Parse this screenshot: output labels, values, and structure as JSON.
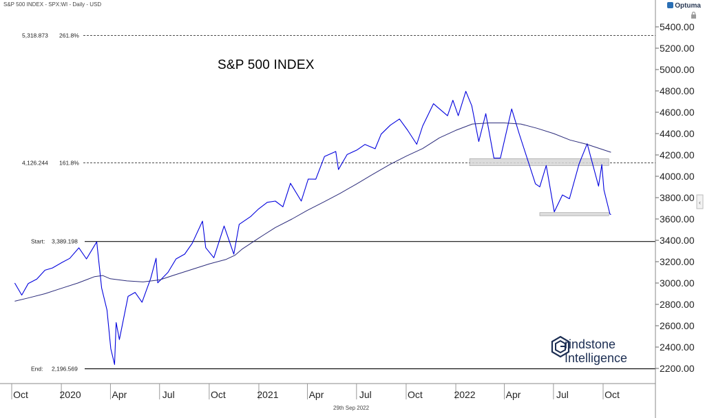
{
  "header": {
    "info": "S&P 500 INDEX - SPX:WI - Daily - USD",
    "brand": "Optuma"
  },
  "footer": {
    "date": "29th Sep 2022"
  },
  "watermark": {
    "line1": "rindstone",
    "line2": "Intelligence"
  },
  "chart_data": {
    "type": "line",
    "title": "S&P 500 INDEX",
    "xlabel": "",
    "ylabel": "",
    "y_ticks": [
      "5400.00",
      "5200.00",
      "5000.00",
      "4800.00",
      "4600.00",
      "4400.00",
      "4200.00",
      "4000.00",
      "3800.00",
      "3600.00",
      "3400.00",
      "3200.00",
      "3000.00",
      "2800.00",
      "2600.00",
      "2400.00",
      "2200.00"
    ],
    "x_ticks": [
      {
        "label": "Oct",
        "date": "2019-10-01"
      },
      {
        "label": "2020",
        "date": "2020-01-01"
      },
      {
        "label": "Apr",
        "date": "2020-04-01"
      },
      {
        "label": "Jul",
        "date": "2020-07-01"
      },
      {
        "label": "Oct",
        "date": "2020-10-01"
      },
      {
        "label": "2021",
        "date": "2021-01-01"
      },
      {
        "label": "Apr",
        "date": "2021-04-01"
      },
      {
        "label": "Jul",
        "date": "2021-07-01"
      },
      {
        "label": "Oct",
        "date": "2021-10-01"
      },
      {
        "label": "2022",
        "date": "2022-01-01"
      },
      {
        "label": "Apr",
        "date": "2022-04-01"
      },
      {
        "label": "Jul",
        "date": "2022-07-01"
      },
      {
        "label": "Oct",
        "date": "2022-10-01"
      }
    ],
    "levels": [
      {
        "name": "5,318.873",
        "tag": "261.8%",
        "value": 5318.873,
        "style": "dashed"
      },
      {
        "name": "4,126.244",
        "tag": "161.8%",
        "value": 4126.244,
        "style": "dashed"
      },
      {
        "name": "Start:",
        "tag": "3,389.198",
        "value": 3389.198,
        "style": "solid"
      },
      {
        "name": "End:",
        "tag": "2,196.569",
        "value": 2196.569,
        "style": "solid"
      }
    ],
    "zones": [
      {
        "from_date": "2022-01-10",
        "to_date": "2022-09-25",
        "low": 4100,
        "high": 4165
      },
      {
        "from_date": "2022-05-20",
        "to_date": "2022-09-25",
        "low": 3630,
        "high": 3660
      }
    ],
    "series": [
      {
        "color": "#0000dd",
        "points": [
          [
            "2019-09-20",
            3000
          ],
          [
            "2019-10-03",
            2887
          ],
          [
            "2019-10-15",
            2995
          ],
          [
            "2019-10-31",
            3037
          ],
          [
            "2019-11-15",
            3120
          ],
          [
            "2019-11-29",
            3141
          ],
          [
            "2019-12-16",
            3191
          ],
          [
            "2019-12-31",
            3231
          ],
          [
            "2020-01-17",
            3330
          ],
          [
            "2020-01-31",
            3226
          ],
          [
            "2020-02-19",
            3386
          ],
          [
            "2020-02-28",
            2954
          ],
          [
            "2020-03-09",
            2747
          ],
          [
            "2020-03-16",
            2386
          ],
          [
            "2020-03-23",
            2237
          ],
          [
            "2020-03-26",
            2630
          ],
          [
            "2020-04-01",
            2470
          ],
          [
            "2020-04-17",
            2875
          ],
          [
            "2020-04-30",
            2912
          ],
          [
            "2020-05-13",
            2820
          ],
          [
            "2020-05-29",
            3044
          ],
          [
            "2020-06-08",
            3232
          ],
          [
            "2020-06-11",
            3002
          ],
          [
            "2020-06-30",
            3100
          ],
          [
            "2020-07-15",
            3226
          ],
          [
            "2020-07-31",
            3271
          ],
          [
            "2020-08-14",
            3372
          ],
          [
            "2020-09-02",
            3580
          ],
          [
            "2020-09-08",
            3331
          ],
          [
            "2020-09-23",
            3237
          ],
          [
            "2020-10-12",
            3534
          ],
          [
            "2020-10-30",
            3270
          ],
          [
            "2020-11-09",
            3550
          ],
          [
            "2020-11-30",
            3622
          ],
          [
            "2020-12-15",
            3694
          ],
          [
            "2020-12-31",
            3756
          ],
          [
            "2021-01-15",
            3768
          ],
          [
            "2021-01-29",
            3714
          ],
          [
            "2021-02-12",
            3934
          ],
          [
            "2021-03-04",
            3768
          ],
          [
            "2021-03-17",
            3974
          ],
          [
            "2021-03-31",
            3973
          ],
          [
            "2021-04-16",
            4185
          ],
          [
            "2021-05-07",
            4232
          ],
          [
            "2021-05-12",
            4063
          ],
          [
            "2021-05-28",
            4204
          ],
          [
            "2021-06-15",
            4246
          ],
          [
            "2021-06-30",
            4298
          ],
          [
            "2021-07-19",
            4258
          ],
          [
            "2021-07-30",
            4395
          ],
          [
            "2021-08-16",
            4479
          ],
          [
            "2021-09-02",
            4537
          ],
          [
            "2021-09-17",
            4432
          ],
          [
            "2021-10-04",
            4300
          ],
          [
            "2021-10-15",
            4471
          ],
          [
            "2021-11-04",
            4680
          ],
          [
            "2021-11-30",
            4567
          ],
          [
            "2021-12-10",
            4712
          ],
          [
            "2021-12-20",
            4568
          ],
          [
            "2022-01-03",
            4796
          ],
          [
            "2022-01-14",
            4662
          ],
          [
            "2022-01-27",
            4326
          ],
          [
            "2022-02-09",
            4587
          ],
          [
            "2022-02-24",
            4170
          ],
          [
            "2022-03-08",
            4170
          ],
          [
            "2022-03-29",
            4631
          ],
          [
            "2022-04-12",
            4397
          ],
          [
            "2022-04-29",
            4132
          ],
          [
            "2022-05-12",
            3930
          ],
          [
            "2022-05-20",
            3901
          ],
          [
            "2022-06-01",
            4101
          ],
          [
            "2022-06-16",
            3667
          ],
          [
            "2022-07-01",
            3825
          ],
          [
            "2022-07-14",
            3790
          ],
          [
            "2022-08-01",
            4118
          ],
          [
            "2022-08-16",
            4305
          ],
          [
            "2022-09-06",
            3908
          ],
          [
            "2022-09-12",
            4110
          ],
          [
            "2022-09-16",
            3873
          ],
          [
            "2022-09-27",
            3647
          ],
          [
            "2022-09-29",
            3640
          ]
        ]
      },
      {
        "color": "#2a2a7a",
        "points": [
          [
            "2019-09-20",
            2830
          ],
          [
            "2019-10-15",
            2860
          ],
          [
            "2019-11-15",
            2900
          ],
          [
            "2019-12-15",
            2950
          ],
          [
            "2020-01-15",
            3000
          ],
          [
            "2020-02-15",
            3060
          ],
          [
            "2020-03-01",
            3070
          ],
          [
            "2020-03-15",
            3040
          ],
          [
            "2020-04-15",
            3020
          ],
          [
            "2020-05-15",
            3010
          ],
          [
            "2020-06-15",
            3030
          ],
          [
            "2020-07-15",
            3080
          ],
          [
            "2020-08-15",
            3130
          ],
          [
            "2020-09-15",
            3180
          ],
          [
            "2020-10-15",
            3220
          ],
          [
            "2020-11-01",
            3260
          ],
          [
            "2020-11-15",
            3320
          ],
          [
            "2020-12-15",
            3420
          ],
          [
            "2021-01-15",
            3520
          ],
          [
            "2021-02-15",
            3600
          ],
          [
            "2021-03-15",
            3680
          ],
          [
            "2021-04-15",
            3760
          ],
          [
            "2021-05-15",
            3840
          ],
          [
            "2021-06-15",
            3930
          ],
          [
            "2021-07-15",
            4020
          ],
          [
            "2021-08-15",
            4110
          ],
          [
            "2021-09-15",
            4190
          ],
          [
            "2021-10-15",
            4260
          ],
          [
            "2021-11-15",
            4360
          ],
          [
            "2021-12-15",
            4430
          ],
          [
            "2022-01-15",
            4490
          ],
          [
            "2022-02-15",
            4500
          ],
          [
            "2022-03-15",
            4500
          ],
          [
            "2022-04-15",
            4490
          ],
          [
            "2022-05-15",
            4450
          ],
          [
            "2022-06-15",
            4400
          ],
          [
            "2022-07-15",
            4340
          ],
          [
            "2022-08-15",
            4300
          ],
          [
            "2022-09-29",
            4225
          ]
        ]
      }
    ]
  }
}
